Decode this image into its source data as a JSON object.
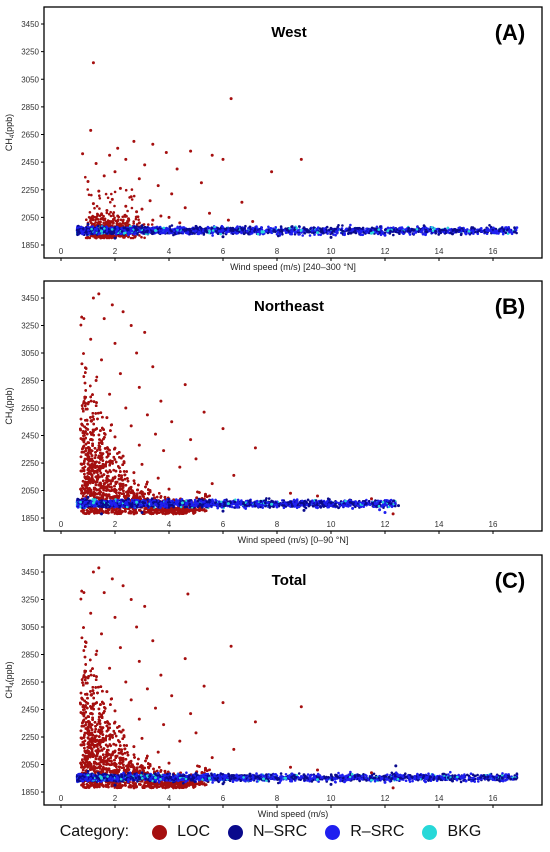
{
  "chart_data": [
    {
      "type": "scatter",
      "panel_label": "(A)",
      "title": "West",
      "xlabel": "Wind speed (m/s) [240–300 °N]",
      "ylabel": "CH4(ppb)",
      "ylabel_main": "CH",
      "ylabel_sub": "4",
      "ylabel_rest": "(ppb)",
      "xlim": [
        0,
        17.5
      ],
      "ylim": [
        1800,
        3500
      ],
      "xticks": [
        0,
        2,
        4,
        6,
        8,
        10,
        12,
        14,
        16
      ],
      "yticks": [
        1850,
        2050,
        2250,
        2450,
        2650,
        2850,
        3050,
        3250,
        3450
      ],
      "grid": false,
      "series": [
        {
          "name": "LOC",
          "points": [
            [
              1.2,
              3170
            ],
            [
              6.3,
              2910
            ],
            [
              1.1,
              2680
            ],
            [
              2.7,
              2600
            ],
            [
              3.4,
              2580
            ],
            [
              1.8,
              2500
            ],
            [
              2.1,
              2550
            ],
            [
              4.8,
              2530
            ],
            [
              5.6,
              2500
            ],
            [
              0.8,
              2510
            ],
            [
              3.9,
              2520
            ],
            [
              2.4,
              2470
            ],
            [
              8.9,
              2470
            ],
            [
              6.0,
              2470
            ],
            [
              1.3,
              2440
            ],
            [
              3.1,
              2430
            ],
            [
              4.3,
              2400
            ],
            [
              2.0,
              2380
            ],
            [
              7.8,
              2380
            ],
            [
              1.6,
              2350
            ],
            [
              2.9,
              2330
            ],
            [
              5.2,
              2300
            ],
            [
              1.0,
              2310
            ],
            [
              3.6,
              2280
            ],
            [
              2.2,
              2260
            ],
            [
              1.4,
              2240
            ],
            [
              4.1,
              2220
            ],
            [
              2.6,
              2200
            ],
            [
              1.9,
              2180
            ],
            [
              3.3,
              2170
            ],
            [
              6.7,
              2160
            ],
            [
              1.2,
              2150
            ],
            [
              2.4,
              2130
            ],
            [
              4.6,
              2120
            ],
            [
              3.0,
              2110
            ],
            [
              1.7,
              2100
            ],
            [
              2.8,
              2090
            ],
            [
              5.5,
              2080
            ],
            [
              1.5,
              2070
            ],
            [
              3.7,
              2060
            ],
            [
              2.1,
              2060
            ],
            [
              4.0,
              2050
            ],
            [
              1.1,
              2040
            ],
            [
              2.5,
              2040
            ],
            [
              6.2,
              2030
            ],
            [
              3.4,
              2030
            ],
            [
              1.8,
              2020
            ],
            [
              7.1,
              2020
            ],
            [
              2.9,
              2010
            ],
            [
              4.4,
              2010
            ]
          ]
        },
        {
          "name": "N–SRC",
          "points": [
            [
              1.0,
              2000
            ],
            [
              3.0,
              1990
            ],
            [
              5.0,
              1985
            ],
            [
              7.0,
              1980
            ],
            [
              9.0,
              1975
            ],
            [
              11.0,
              1970
            ],
            [
              13.0,
              1960
            ],
            [
              2.0,
              1900
            ],
            [
              6.0,
              1910
            ],
            [
              10.0,
              1905
            ],
            [
              14.5,
              1930
            ],
            [
              16.8,
              1945
            ]
          ]
        },
        {
          "name": "R–SRC",
          "points": [
            [
              0.8,
              1930
            ],
            [
              2.5,
              1940
            ],
            [
              4.5,
              1945
            ],
            [
              6.5,
              1935
            ],
            [
              8.5,
              1930
            ],
            [
              10.5,
              1925
            ],
            [
              12.0,
              1920
            ],
            [
              13.5,
              1925
            ],
            [
              15.0,
              1930
            ],
            [
              16.0,
              1940
            ]
          ]
        },
        {
          "name": "BKG",
          "points": [
            [
              1.5,
              1950
            ],
            [
              3.5,
              1955
            ],
            [
              5.5,
              1950
            ],
            [
              7.5,
              1945
            ],
            [
              9.5,
              1940
            ],
            [
              11.5,
              1935
            ]
          ]
        }
      ]
    },
    {
      "type": "scatter",
      "panel_label": "(B)",
      "title": "Northeast",
      "xlabel": "Wind speed (m/s) [0–90 °N]",
      "ylabel": "CH4(ppb)",
      "ylabel_main": "CH",
      "ylabel_sub": "4",
      "ylabel_rest": "(ppb)",
      "xlim": [
        0,
        17.5
      ],
      "ylim": [
        1800,
        3500
      ],
      "xticks": [
        0,
        2,
        4,
        6,
        8,
        10,
        12,
        14,
        16
      ],
      "yticks": [
        1850,
        2050,
        2250,
        2450,
        2650,
        2850,
        3050,
        3250,
        3450
      ],
      "grid": false,
      "series": [
        {
          "name": "LOC",
          "points": [
            [
              1.4,
              3480
            ],
            [
              1.2,
              3450
            ],
            [
              1.9,
              3400
            ],
            [
              2.3,
              3350
            ],
            [
              1.6,
              3300
            ],
            [
              2.6,
              3250
            ],
            [
              3.1,
              3200
            ],
            [
              1.1,
              3150
            ],
            [
              2.0,
              3120
            ],
            [
              2.8,
              3050
            ],
            [
              1.5,
              3000
            ],
            [
              3.4,
              2950
            ],
            [
              2.2,
              2900
            ],
            [
              1.3,
              2850
            ],
            [
              4.6,
              2820
            ],
            [
              2.9,
              2800
            ],
            [
              1.8,
              2750
            ],
            [
              3.7,
              2700
            ],
            [
              1.0,
              2680
            ],
            [
              2.4,
              2650
            ],
            [
              5.3,
              2620
            ],
            [
              3.2,
              2600
            ],
            [
              1.7,
              2580
            ],
            [
              4.1,
              2550
            ],
            [
              2.6,
              2520
            ],
            [
              6.0,
              2500
            ],
            [
              1.2,
              2480
            ],
            [
              3.5,
              2460
            ],
            [
              2.0,
              2440
            ],
            [
              4.8,
              2420
            ],
            [
              1.5,
              2400
            ],
            [
              2.9,
              2380
            ],
            [
              7.2,
              2360
            ],
            [
              3.8,
              2340
            ],
            [
              1.1,
              2320
            ],
            [
              2.3,
              2300
            ],
            [
              5.0,
              2280
            ],
            [
              1.8,
              2260
            ],
            [
              3.0,
              2240
            ],
            [
              4.4,
              2220
            ],
            [
              1.4,
              2200
            ],
            [
              2.7,
              2180
            ],
            [
              6.4,
              2160
            ],
            [
              3.6,
              2140
            ],
            [
              1.9,
              2120
            ],
            [
              5.6,
              2100
            ],
            [
              2.2,
              2080
            ],
            [
              4.0,
              2060
            ],
            [
              3.3,
              2040
            ],
            [
              8.5,
              2030
            ],
            [
              1.6,
              2020
            ],
            [
              9.5,
              2010
            ],
            [
              11.5,
              1990
            ],
            [
              12.3,
              1880
            ]
          ]
        },
        {
          "name": "N–SRC",
          "points": [
            [
              1.0,
              2000
            ],
            [
              2.5,
              1990
            ],
            [
              4.0,
              1985
            ],
            [
              5.5,
              1980
            ],
            [
              7.0,
              1975
            ],
            [
              8.5,
              1965
            ],
            [
              10.0,
              1960
            ],
            [
              11.3,
              1955
            ],
            [
              1.5,
              1880
            ],
            [
              3.0,
              1890
            ],
            [
              6.0,
              1900
            ],
            [
              9.0,
              1905
            ],
            [
              12.5,
              1940
            ]
          ]
        },
        {
          "name": "R–SRC",
          "points": [
            [
              0.8,
              1940
            ],
            [
              2.0,
              1945
            ],
            [
              3.5,
              1950
            ],
            [
              5.0,
              1940
            ],
            [
              6.5,
              1935
            ],
            [
              8.0,
              1930
            ],
            [
              9.5,
              1925
            ],
            [
              10.8,
              1920
            ],
            [
              11.8,
              1910
            ],
            [
              12.0,
              1890
            ]
          ]
        },
        {
          "name": "BKG",
          "points": [
            [
              1.2,
              1960
            ],
            [
              2.8,
              1965
            ],
            [
              4.5,
              1960
            ],
            [
              6.2,
              1955
            ],
            [
              7.8,
              1950
            ]
          ]
        }
      ]
    },
    {
      "type": "scatter",
      "panel_label": "(C)",
      "title": "Total",
      "xlabel": "Wind speed (m/s)",
      "ylabel": "CH4(ppb)",
      "ylabel_main": "CH",
      "ylabel_sub": "4",
      "ylabel_rest": "(ppb)",
      "xlim": [
        0,
        17.5
      ],
      "ylim": [
        1800,
        3500
      ],
      "xticks": [
        0,
        2,
        4,
        6,
        8,
        10,
        12,
        14,
        16
      ],
      "yticks": [
        1850,
        2050,
        2250,
        2450,
        2650,
        2850,
        3050,
        3250,
        3450
      ],
      "grid": false,
      "series": [
        {
          "name": "LOC",
          "points": [
            [
              1.4,
              3480
            ],
            [
              1.2,
              3450
            ],
            [
              1.9,
              3400
            ],
            [
              2.3,
              3350
            ],
            [
              1.6,
              3300
            ],
            [
              4.7,
              3290
            ],
            [
              2.6,
              3250
            ],
            [
              3.1,
              3200
            ],
            [
              1.1,
              3150
            ],
            [
              2.0,
              3120
            ],
            [
              2.8,
              3050
            ],
            [
              1.5,
              3000
            ],
            [
              3.4,
              2950
            ],
            [
              6.3,
              2910
            ],
            [
              2.2,
              2900
            ],
            [
              1.3,
              2850
            ],
            [
              4.6,
              2820
            ],
            [
              2.9,
              2800
            ],
            [
              1.8,
              2750
            ],
            [
              3.7,
              2700
            ],
            [
              1.0,
              2680
            ],
            [
              2.4,
              2650
            ],
            [
              5.3,
              2620
            ],
            [
              3.2,
              2600
            ],
            [
              1.7,
              2580
            ],
            [
              4.1,
              2550
            ],
            [
              2.6,
              2520
            ],
            [
              6.0,
              2500
            ],
            [
              1.2,
              2480
            ],
            [
              8.9,
              2470
            ],
            [
              3.5,
              2460
            ],
            [
              2.0,
              2440
            ],
            [
              4.8,
              2420
            ],
            [
              1.5,
              2400
            ],
            [
              2.9,
              2380
            ],
            [
              7.2,
              2360
            ],
            [
              3.8,
              2340
            ],
            [
              1.1,
              2320
            ],
            [
              2.3,
              2300
            ],
            [
              5.0,
              2280
            ],
            [
              1.8,
              2260
            ],
            [
              3.0,
              2240
            ],
            [
              4.4,
              2220
            ],
            [
              1.4,
              2200
            ],
            [
              2.7,
              2180
            ],
            [
              6.4,
              2160
            ],
            [
              3.6,
              2140
            ],
            [
              1.9,
              2120
            ],
            [
              5.6,
              2100
            ],
            [
              2.2,
              2080
            ],
            [
              4.0,
              2060
            ],
            [
              3.3,
              2040
            ],
            [
              8.5,
              2030
            ],
            [
              1.6,
              2020
            ],
            [
              9.5,
              2010
            ],
            [
              11.5,
              1990
            ],
            [
              12.3,
              1880
            ]
          ]
        },
        {
          "name": "N–SRC",
          "points": [
            [
              1.0,
              2000
            ],
            [
              3.0,
              1990
            ],
            [
              5.0,
              1985
            ],
            [
              7.0,
              1980
            ],
            [
              9.0,
              1975
            ],
            [
              11.0,
              1970
            ],
            [
              13.0,
              1960
            ],
            [
              2.0,
              1900
            ],
            [
              6.0,
              1910
            ],
            [
              10.0,
              1905
            ],
            [
              14.5,
              1930
            ],
            [
              16.8,
              1945
            ],
            [
              12.4,
              2040
            ]
          ]
        },
        {
          "name": "R–SRC",
          "points": [
            [
              0.8,
              1930
            ],
            [
              2.5,
              1940
            ],
            [
              4.5,
              1945
            ],
            [
              6.5,
              1935
            ],
            [
              8.5,
              1930
            ],
            [
              10.5,
              1925
            ],
            [
              12.0,
              1920
            ],
            [
              13.5,
              1925
            ],
            [
              15.0,
              1930
            ],
            [
              16.0,
              1940
            ]
          ]
        },
        {
          "name": "BKG",
          "points": [
            [
              1.5,
              1950
            ],
            [
              3.5,
              1955
            ],
            [
              5.5,
              1950
            ],
            [
              7.5,
              1945
            ],
            [
              9.5,
              1940
            ],
            [
              11.5,
              1935
            ]
          ]
        }
      ]
    }
  ],
  "legend": {
    "title": "Category:",
    "items": [
      {
        "label": "LOC",
        "color": "#a50f0f"
      },
      {
        "label": "N–SRC",
        "color": "#0a0a8c"
      },
      {
        "label": "R–SRC",
        "color": "#1f1fef"
      },
      {
        "label": "BKG",
        "color": "#27d8d8"
      }
    ]
  }
}
